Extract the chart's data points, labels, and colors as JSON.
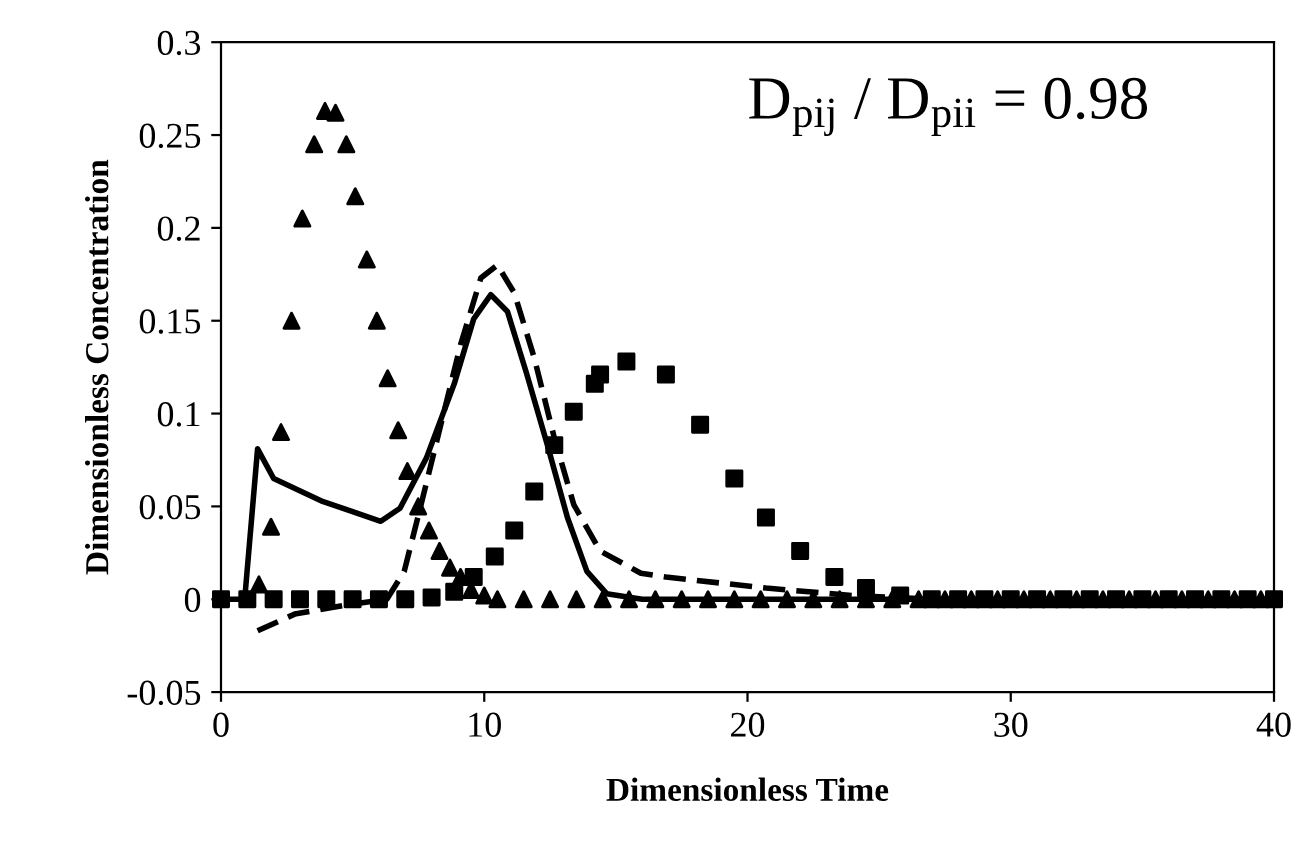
{
  "chart_data": {
    "type": "line",
    "xlabel": "Dimensionless Time",
    "ylabel": "Dimensionless Concentration",
    "annotations": [
      "D$_{pij}$ / D$_{pii}$ = 0.98"
    ],
    "xlim": [
      0,
      40
    ],
    "ylim": [
      -0.05,
      0.3
    ],
    "xticks": [
      0,
      10,
      20,
      30,
      40
    ],
    "yticks": [
      -0.05,
      0,
      0.05,
      0.1,
      0.15,
      0.2,
      0.25,
      0.3
    ],
    "grid": false,
    "legend": false,
    "series": [
      {
        "type": "scatter",
        "marker": "triangle",
        "color": "#000000",
        "x": [
          1.44,
          1.9,
          2.28,
          2.68,
          3.09,
          3.54,
          3.95,
          4.35,
          4.76,
          5.1,
          5.54,
          5.92,
          6.33,
          6.73,
          7.08,
          7.49,
          7.9,
          8.3,
          8.7,
          9.1,
          9.5,
          10,
          10.5,
          11.5,
          12.5,
          13.5,
          14.5,
          15.5,
          16.5,
          17.5,
          18.5,
          19.5,
          20.5,
          21.5,
          22.5,
          23.5,
          24.5,
          25.5,
          26.5,
          27.5,
          28.5,
          29.5,
          30.5,
          31.5,
          32.5,
          33.5,
          34.5,
          35.5,
          36.5,
          37.5,
          38.5,
          39.5
        ],
        "values": [
          0.008,
          0.039,
          0.09,
          0.15,
          0.205,
          0.245,
          0.263,
          0.262,
          0.245,
          0.217,
          0.183,
          0.15,
          0.119,
          0.091,
          0.069,
          0.05,
          0.037,
          0.026,
          0.017,
          0.012,
          0.005,
          0.002,
          0,
          0,
          0,
          0,
          0,
          0,
          0,
          0,
          0,
          0,
          0,
          0,
          0,
          0,
          0,
          0,
          0,
          0,
          0,
          0,
          0,
          0,
          0,
          0,
          0,
          0,
          0,
          0,
          0,
          0
        ]
      },
      {
        "line_style": "solid",
        "color": "#000000",
        "x": [
          0,
          0.9,
          1.39,
          2.0,
          3.8,
          6.07,
          6.8,
          7.8,
          8.86,
          9.6,
          10.25,
          10.88,
          11.6,
          12.4,
          13.16,
          13.9,
          14.65,
          16,
          40
        ],
        "values": [
          0,
          0,
          0.081,
          0.065,
          0.053,
          0.042,
          0.049,
          0.076,
          0.116,
          0.151,
          0.164,
          0.155,
          0.122,
          0.083,
          0.044,
          0.015,
          0.003,
          0,
          0
        ]
      },
      {
        "line_style": "dashed",
        "color": "#000000",
        "x": [
          1.39,
          2.8,
          4.8,
          6.3,
          6.96,
          7.6,
          8.35,
          9.1,
          9.87,
          10.5,
          11.14,
          11.9,
          12.66,
          13.4,
          14.4,
          15.95,
          16.9,
          20.7,
          24,
          27,
          40
        ],
        "values": [
          -0.017,
          -0.008,
          -0.003,
          0,
          0.015,
          0.051,
          0.094,
          0.137,
          0.173,
          0.18,
          0.165,
          0.13,
          0.087,
          0.051,
          0.026,
          0.014,
          0.012,
          0.006,
          0.002,
          0,
          0
        ]
      },
      {
        "type": "scatter",
        "marker": "square",
        "color": "#000000",
        "x": [
          0,
          1,
          2,
          3,
          4,
          5,
          6,
          7,
          8,
          8.86,
          9.6,
          10.4,
          11.14,
          11.9,
          12.66,
          13.4,
          14.2,
          14.4,
          15.4,
          16.9,
          18.2,
          19.5,
          20.7,
          22.0,
          23.3,
          24.5,
          25.8,
          27,
          28,
          29,
          30,
          31,
          32,
          33,
          34,
          35,
          36,
          37,
          38,
          39,
          40
        ],
        "values": [
          0,
          0,
          0,
          0,
          0,
          0,
          0,
          0,
          0.001,
          0.004,
          0.012,
          0.023,
          0.037,
          0.058,
          0.083,
          0.101,
          0.116,
          0.121,
          0.128,
          0.121,
          0.094,
          0.065,
          0.044,
          0.026,
          0.012,
          0.006,
          0.002,
          0,
          0,
          0,
          0,
          0,
          0,
          0,
          0,
          0,
          0,
          0,
          0,
          0,
          0
        ]
      }
    ]
  }
}
